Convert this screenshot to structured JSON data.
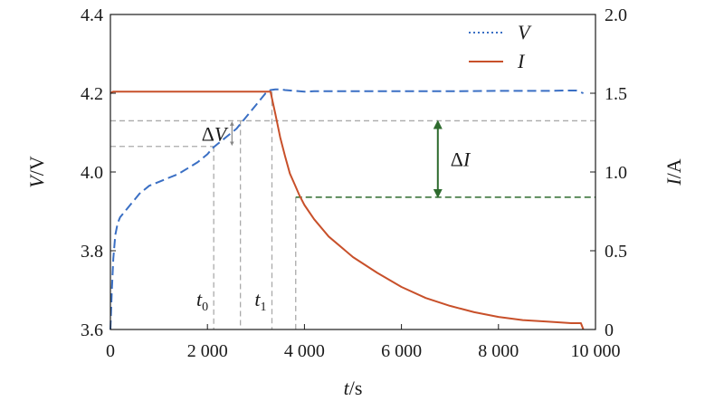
{
  "chart_data": {
    "type": "line",
    "xlabel": {
      "var": "t",
      "unit": "/s"
    },
    "ylabel_left": {
      "var": "V",
      "unit": "/V"
    },
    "ylabel_right": {
      "var": "I",
      "unit": "/A"
    },
    "xlim": [
      0,
      10000
    ],
    "ylim_left": [
      3.6,
      4.4
    ],
    "ylim_right": [
      0,
      2.0
    ],
    "x_ticks": [
      0,
      2000,
      4000,
      6000,
      8000,
      10000
    ],
    "x_tick_labels": [
      "0",
      "2 000",
      "4 000",
      "6 000",
      "8 000",
      "10 000"
    ],
    "y_left_ticks": [
      3.6,
      3.8,
      4.0,
      4.2,
      4.4
    ],
    "y_left_tick_labels": [
      "3.6",
      "3.8",
      "4.0",
      "4.2",
      "4.4"
    ],
    "y_right_ticks": [
      0,
      0.5,
      1.0,
      1.5,
      2.0
    ],
    "y_right_tick_labels": [
      "0",
      "0.5",
      "1.0",
      "1.5",
      "2.0"
    ],
    "grid": false,
    "legend": {
      "placement": "top-right",
      "entries": [
        "V",
        "I"
      ]
    },
    "series": [
      {
        "name": "V",
        "axis": "left",
        "style": "dashed",
        "color": "#3a6fc4",
        "x": [
          0,
          30,
          60,
          100,
          150,
          200,
          300,
          400,
          500,
          600,
          700,
          800,
          900,
          1000,
          1200,
          1400,
          1600,
          1800,
          2000,
          2100,
          2200,
          2400,
          2600,
          2700,
          2800,
          3000,
          3200,
          3300,
          3400,
          3500,
          3600,
          3800,
          4000,
          4200,
          4500,
          5000,
          6000,
          7000,
          8000,
          9000,
          9400,
          9600,
          9750
        ],
        "y": [
          3.6,
          3.7,
          3.78,
          3.84,
          3.87,
          3.885,
          3.9,
          3.915,
          3.93,
          3.945,
          3.955,
          3.965,
          3.97,
          3.975,
          3.985,
          3.995,
          4.01,
          4.025,
          4.045,
          4.06,
          4.07,
          4.09,
          4.11,
          4.125,
          4.14,
          4.17,
          4.2,
          4.208,
          4.21,
          4.21,
          4.208,
          4.206,
          4.204,
          4.205,
          4.205,
          4.205,
          4.205,
          4.205,
          4.206,
          4.206,
          4.207,
          4.207,
          4.2
        ]
      },
      {
        "name": "I",
        "axis": "right",
        "style": "solid",
        "color": "#c8502a",
        "x": [
          0,
          50,
          500,
          1000,
          2000,
          3000,
          3300,
          3400,
          3500,
          3600,
          3700,
          3800,
          3900,
          4000,
          4200,
          4500,
          5000,
          5500,
          6000,
          6500,
          7000,
          7500,
          8000,
          8500,
          9000,
          9500,
          9700,
          9750
        ],
        "y": [
          1.5,
          1.51,
          1.51,
          1.51,
          1.51,
          1.51,
          1.51,
          1.37,
          1.22,
          1.1,
          0.99,
          0.92,
          0.85,
          0.79,
          0.7,
          0.59,
          0.46,
          0.36,
          0.27,
          0.2,
          0.15,
          0.11,
          0.08,
          0.06,
          0.05,
          0.04,
          0.04,
          0.0
        ]
      }
    ],
    "annotations": {
      "dV_label": "V",
      "dV_prefix": "Δ",
      "dI_label": "I",
      "dI_prefix": "Δ",
      "t0_label": "t",
      "t0_sub": "0",
      "t1_label": "t",
      "t1_sub": "1",
      "V_high_level": 4.13,
      "V_low_level": 4.065,
      "I_low_level": 0.84,
      "t0_x": 2130,
      "t_dV_x": 2680,
      "t1_x": 3330,
      "t_dI_x": 3820,
      "dI_arrow_x": 6750,
      "dV_arrow_x": 1760,
      "ref_color": "#aaaaaa",
      "dI_color": "#2e6b2e",
      "dV_arrow_color": "#888888"
    }
  }
}
